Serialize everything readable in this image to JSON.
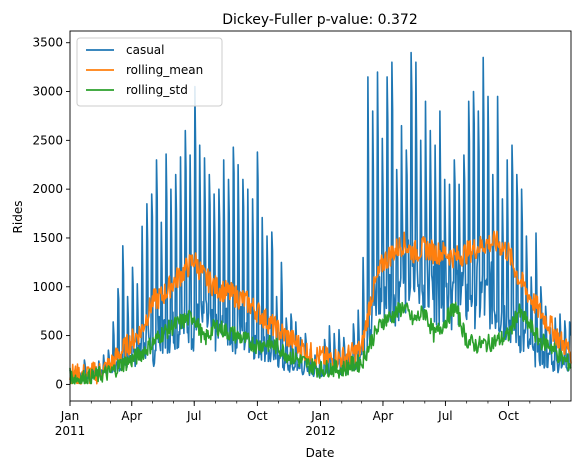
{
  "chart_data": {
    "type": "line",
    "title": "Dickey-Fuller p-value: 0.372",
    "xlabel": "Date",
    "ylabel": "Rides",
    "ylim": [
      -170,
      3620
    ],
    "x_range": [
      "2011-01-01",
      "2012-12-31"
    ],
    "yticks": [
      0,
      500,
      1000,
      1500,
      2000,
      2500,
      3000,
      3500
    ],
    "xticks": [
      {
        "date": "2011-01-01",
        "label": "Jan",
        "year": "2011"
      },
      {
        "date": "2011-04-01",
        "label": "Apr",
        "year": ""
      },
      {
        "date": "2011-07-01",
        "label": "Jul",
        "year": ""
      },
      {
        "date": "2011-10-01",
        "label": "Oct",
        "year": ""
      },
      {
        "date": "2012-01-01",
        "label": "Jan",
        "year": "2012"
      },
      {
        "date": "2012-04-01",
        "label": "Apr",
        "year": ""
      },
      {
        "date": "2012-07-01",
        "label": "Jul",
        "year": ""
      },
      {
        "date": "2012-10-01",
        "label": "Oct",
        "year": ""
      }
    ],
    "legend_position": "top-left",
    "grid": false,
    "series": [
      {
        "name": "casual",
        "color": "#1f77b4",
        "dates": [
          "2011-01-01",
          "2011-01-08",
          "2011-01-15",
          "2011-01-22",
          "2011-01-29",
          "2011-02-05",
          "2011-02-12",
          "2011-02-19",
          "2011-02-26",
          "2011-03-05",
          "2011-03-12",
          "2011-03-19",
          "2011-03-26",
          "2011-04-02",
          "2011-04-09",
          "2011-04-16",
          "2011-04-23",
          "2011-04-30",
          "2011-05-07",
          "2011-05-14",
          "2011-05-21",
          "2011-05-28",
          "2011-06-04",
          "2011-06-11",
          "2011-06-18",
          "2011-06-25",
          "2011-07-02",
          "2011-07-09",
          "2011-07-16",
          "2011-07-23",
          "2011-07-30",
          "2011-08-06",
          "2011-08-13",
          "2011-08-20",
          "2011-08-27",
          "2011-09-03",
          "2011-09-10",
          "2011-09-17",
          "2011-09-24",
          "2011-10-01",
          "2011-10-08",
          "2011-10-15",
          "2011-10-22",
          "2011-10-29",
          "2011-11-05",
          "2011-11-12",
          "2011-11-19",
          "2011-11-26",
          "2011-12-03",
          "2011-12-10",
          "2011-12-17",
          "2011-12-24",
          "2011-12-31",
          "2012-01-07",
          "2012-01-14",
          "2012-01-21",
          "2012-01-28",
          "2012-02-04",
          "2012-02-11",
          "2012-02-18",
          "2012-02-25",
          "2012-03-03",
          "2012-03-10",
          "2012-03-17",
          "2012-03-24",
          "2012-03-31",
          "2012-04-07",
          "2012-04-14",
          "2012-04-21",
          "2012-04-28",
          "2012-05-05",
          "2012-05-12",
          "2012-05-19",
          "2012-05-26",
          "2012-06-02",
          "2012-06-09",
          "2012-06-16",
          "2012-06-23",
          "2012-06-30",
          "2012-07-07",
          "2012-07-14",
          "2012-07-21",
          "2012-07-28",
          "2012-08-04",
          "2012-08-11",
          "2012-08-18",
          "2012-08-25",
          "2012-09-01",
          "2012-09-08",
          "2012-09-15",
          "2012-09-22",
          "2012-09-29",
          "2012-10-06",
          "2012-10-13",
          "2012-10-20",
          "2012-10-27",
          "2012-11-03",
          "2012-11-10",
          "2012-11-17",
          "2012-11-24",
          "2012-12-01",
          "2012-12-08",
          "2012-12-15",
          "2012-12-22",
          "2012-12-29"
        ],
        "peaks": [
          150,
          140,
          120,
          250,
          130,
          200,
          240,
          300,
          350,
          640,
          980,
          1420,
          900,
          1200,
          1030,
          1620,
          1850,
          1950,
          2300,
          1660,
          2360,
          2000,
          2150,
          2330,
          2600,
          2350,
          3050,
          2450,
          2320,
          2150,
          1950,
          2000,
          2300,
          2100,
          2430,
          2250,
          2100,
          2000,
          1900,
          2380,
          1710,
          1520,
          1560,
          900,
          1250,
          680,
          720,
          640,
          480,
          520,
          360,
          300,
          250,
          460,
          600,
          520,
          560,
          480,
          360,
          620,
          760,
          1300,
          3150,
          2800,
          3200,
          2520,
          3150,
          3300,
          2200,
          2650,
          2400,
          3400,
          3300,
          2500,
          2900,
          2600,
          2450,
          2800,
          2100,
          2050,
          2300,
          2050,
          2350,
          2900,
          3000,
          2800,
          3350,
          2950,
          2150,
          2950,
          1900,
          2300,
          2450,
          2150,
          2000,
          1520,
          1100,
          1550,
          1000,
          800,
          580,
          680,
          720,
          650,
          640
        ],
        "troughs": [
          100,
          60,
          70,
          90,
          80,
          100,
          120,
          150,
          170,
          200,
          160,
          250,
          200,
          300,
          350,
          400,
          450,
          300,
          550,
          520,
          500,
          600,
          550,
          600,
          650,
          550,
          620,
          640,
          630,
          550,
          520,
          540,
          560,
          550,
          500,
          600,
          480,
          450,
          420,
          400,
          380,
          300,
          280,
          250,
          200,
          180,
          170,
          160,
          150,
          140,
          130,
          120,
          110,
          150,
          180,
          160,
          170,
          160,
          200,
          250,
          300,
          400,
          600,
          800,
          900,
          1000,
          950,
          1000,
          1050,
          1100,
          1100,
          1050,
          950,
          1000,
          1000,
          950,
          1000,
          1050,
          950,
          900,
          1000,
          950,
          900,
          1000,
          950,
          900,
          850,
          900,
          800,
          750,
          700,
          650,
          600,
          500,
          450,
          350,
          300,
          300,
          250,
          250,
          200,
          200,
          200,
          200,
          200
        ]
      },
      {
        "name": "rolling_mean",
        "color": "#ff7f0e",
        "dates": [
          "2011-01-01",
          "2011-01-15",
          "2011-02-01",
          "2011-02-15",
          "2011-03-01",
          "2011-03-15",
          "2011-04-01",
          "2011-04-15",
          "2011-05-01",
          "2011-05-15",
          "2011-06-01",
          "2011-06-15",
          "2011-07-01",
          "2011-07-15",
          "2011-08-01",
          "2011-08-15",
          "2011-09-01",
          "2011-09-15",
          "2011-10-01",
          "2011-10-15",
          "2011-11-01",
          "2011-11-15",
          "2011-12-01",
          "2011-12-15",
          "2012-01-01",
          "2012-01-15",
          "2012-02-01",
          "2012-02-15",
          "2012-03-01",
          "2012-03-15",
          "2012-04-01",
          "2012-04-15",
          "2012-05-01",
          "2012-05-15",
          "2012-06-01",
          "2012-06-15",
          "2012-07-01",
          "2012-07-15",
          "2012-08-01",
          "2012-08-15",
          "2012-09-01",
          "2012-09-15",
          "2012-10-01",
          "2012-10-15",
          "2012-11-01",
          "2012-11-15",
          "2012-12-01",
          "2012-12-15",
          "2012-12-31"
        ],
        "values": [
          100,
          95,
          110,
          130,
          200,
          320,
          450,
          550,
          850,
          900,
          1050,
          1150,
          1280,
          1100,
          1000,
          950,
          900,
          850,
          750,
          650,
          550,
          480,
          400,
          320,
          280,
          260,
          270,
          310,
          360,
          900,
          1250,
          1350,
          1450,
          1350,
          1400,
          1350,
          1350,
          1300,
          1350,
          1400,
          1450,
          1450,
          1350,
          1100,
          900,
          750,
          600,
          450,
          330
        ],
        "noise": 120
      },
      {
        "name": "rolling_std",
        "color": "#2ca02c",
        "dates": [
          "2011-01-01",
          "2011-01-15",
          "2011-02-01",
          "2011-02-15",
          "2011-03-01",
          "2011-03-15",
          "2011-04-01",
          "2011-04-15",
          "2011-05-01",
          "2011-05-15",
          "2011-06-01",
          "2011-06-15",
          "2011-07-01",
          "2011-07-15",
          "2011-08-01",
          "2011-08-15",
          "2011-09-01",
          "2011-09-15",
          "2011-10-01",
          "2011-10-15",
          "2011-11-01",
          "2011-11-15",
          "2011-12-01",
          "2011-12-15",
          "2012-01-01",
          "2012-01-15",
          "2012-02-01",
          "2012-02-15",
          "2012-03-01",
          "2012-03-15",
          "2012-04-01",
          "2012-04-15",
          "2012-05-01",
          "2012-05-15",
          "2012-06-01",
          "2012-06-15",
          "2012-07-01",
          "2012-07-15",
          "2012-08-01",
          "2012-08-15",
          "2012-09-01",
          "2012-09-15",
          "2012-10-01",
          "2012-10-15",
          "2012-11-01",
          "2012-11-15",
          "2012-12-01",
          "2012-12-15",
          "2012-12-31"
        ],
        "values": [
          80,
          60,
          70,
          100,
          120,
          200,
          250,
          320,
          420,
          520,
          600,
          650,
          700,
          450,
          600,
          550,
          500,
          450,
          400,
          420,
          380,
          300,
          250,
          200,
          150,
          170,
          150,
          200,
          220,
          450,
          650,
          700,
          800,
          650,
          750,
          500,
          650,
          800,
          450,
          400,
          420,
          450,
          500,
          750,
          600,
          450,
          400,
          280,
          200
        ],
        "noise": 90
      }
    ]
  }
}
